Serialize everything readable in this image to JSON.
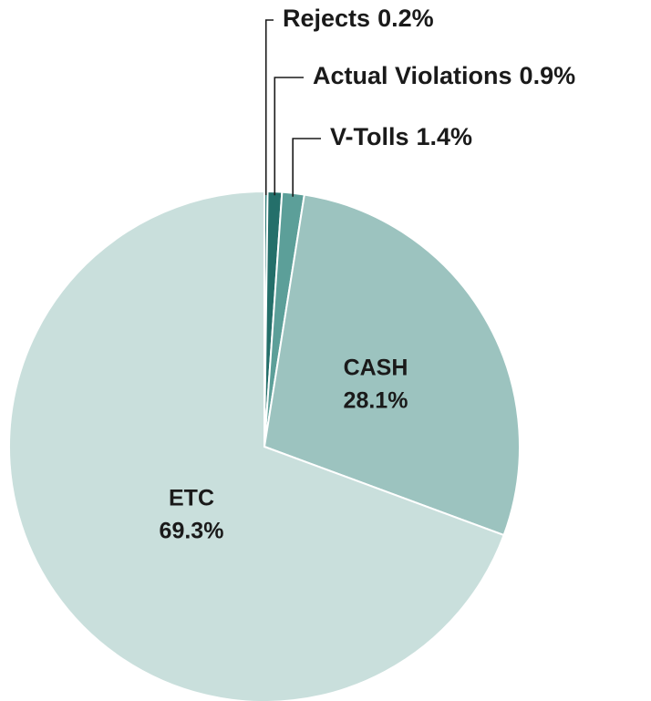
{
  "chart_data": {
    "type": "pie",
    "categories": [
      "Rejects",
      "Actual Violations",
      "V-Tolls",
      "CASH",
      "ETC"
    ],
    "values": [
      0.2,
      0.9,
      1.4,
      28.1,
      69.3
    ],
    "value_labels": [
      "0.2%",
      "0.9%",
      "1.4%",
      "28.1%",
      "69.3%"
    ],
    "colors": [
      "#2f7b76",
      "#246f6a",
      "#5c9f99",
      "#9cc3bf",
      "#c9dfdc"
    ]
  }
}
